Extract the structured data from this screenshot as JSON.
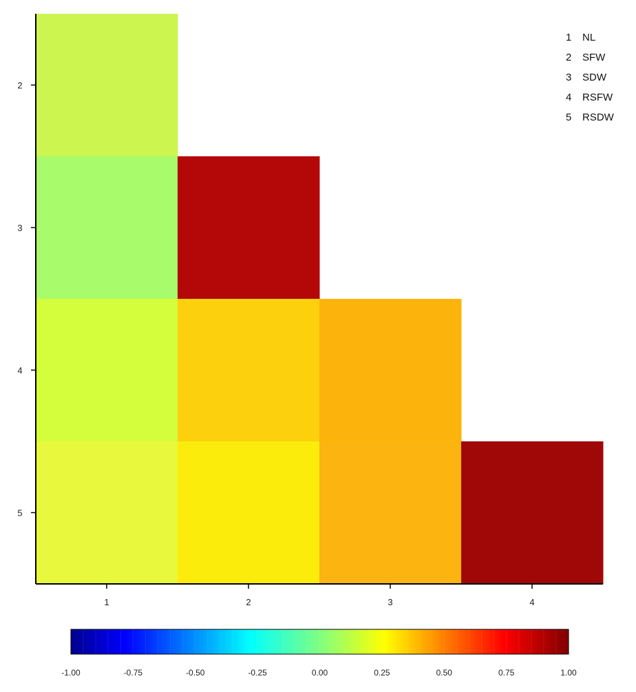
{
  "chart_data": {
    "type": "heatmap",
    "title": "",
    "xlabel": "",
    "ylabel": "",
    "x_categories": [
      "1",
      "2",
      "3",
      "4"
    ],
    "y_categories": [
      "2",
      "3",
      "4",
      "5"
    ],
    "cells": [
      {
        "x": "1",
        "y": "2",
        "value": 0.1,
        "color": "#ccf550"
      },
      {
        "x": "1",
        "y": "3",
        "value": 0.05,
        "color": "#a8fc6c"
      },
      {
        "x": "1",
        "y": "4",
        "value": 0.18,
        "color": "#d4fd3c"
      },
      {
        "x": "2",
        "y": "3",
        "value": 0.92,
        "color": "#b40808"
      },
      {
        "x": "1",
        "y": "5",
        "value": 0.21,
        "color": "#e8f83c"
      },
      {
        "x": "2",
        "y": "4",
        "value": 0.38,
        "color": "#fcd00c"
      },
      {
        "x": "3",
        "y": "4",
        "value": 0.44,
        "color": "#fcb40c"
      },
      {
        "x": "2",
        "y": "5",
        "value": 0.27,
        "color": "#fcec0c"
      },
      {
        "x": "3",
        "y": "5",
        "value": 0.44,
        "color": "#fcb410"
      },
      {
        "x": "4",
        "y": "5",
        "value": 0.96,
        "color": "#a00808"
      }
    ],
    "legend": {
      "placement": "top-right",
      "entries": [
        {
          "num": "1",
          "label": "NL"
        },
        {
          "num": "2",
          "label": "SFW"
        },
        {
          "num": "3",
          "label": "SDW"
        },
        {
          "num": "4",
          "label": "RSFW"
        },
        {
          "num": "5",
          "label": "RSDW"
        }
      ]
    },
    "colorbar": {
      "range": [
        -1.0,
        1.0
      ],
      "tick_labels": [
        "-1.00",
        "-0.75",
        "-0.50",
        "-0.25",
        "0.00",
        "0.25",
        "0.50",
        "0.75",
        "1.00"
      ],
      "colors": [
        "#00008f",
        "#0000ff",
        "#00ffff",
        "#ffff00",
        "#ff0000",
        "#800000"
      ]
    }
  }
}
